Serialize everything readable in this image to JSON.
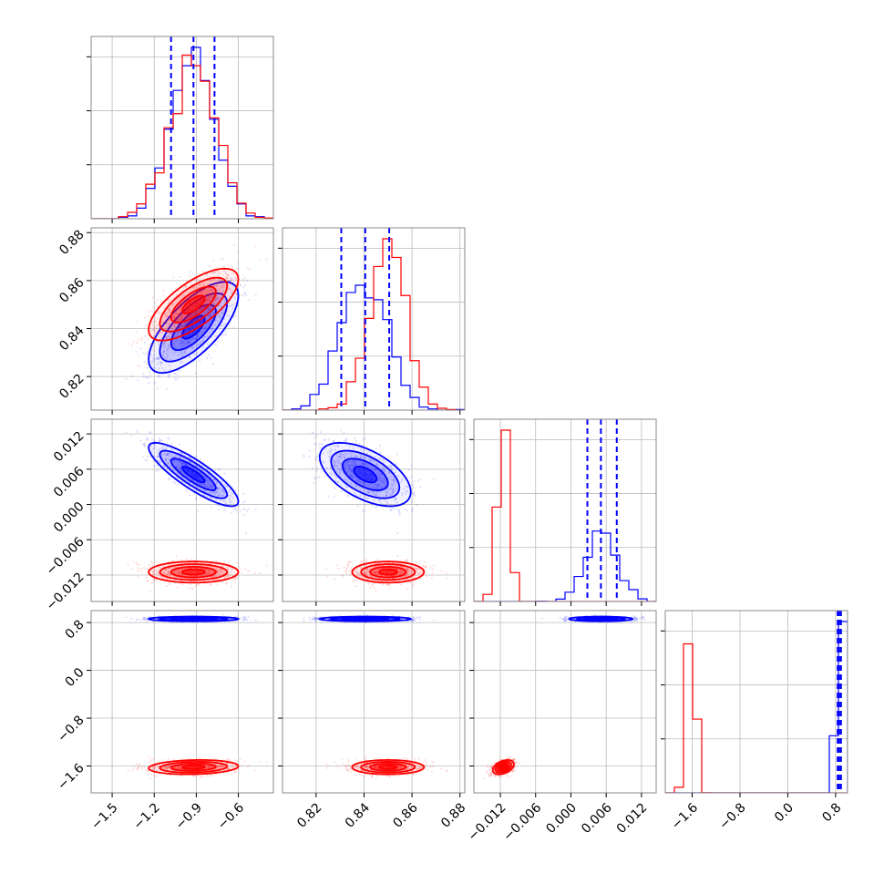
{
  "chart_data": {
    "type": "corner",
    "grid": true,
    "colors": {
      "series_a": "#0000ff",
      "series_b": "#ff0000",
      "frame": "#888888",
      "grid": "#bbbbbb"
    },
    "parameters": [
      {
        "key": "p0",
        "lim": [
          -1.65,
          -0.35
        ],
        "ticks": [
          -1.5,
          -1.2,
          -0.9,
          -0.6
        ],
        "tick_labels": [
          "−1.5",
          "−1.2",
          "−0.9",
          "−0.6"
        ]
      },
      {
        "key": "p1",
        "lim": [
          0.806,
          0.882
        ],
        "ticks": [
          0.82,
          0.84,
          0.86,
          0.88
        ],
        "tick_labels": [
          "0.82",
          "0.84",
          "0.86",
          "0.88"
        ]
      },
      {
        "key": "p2",
        "lim": [
          -0.0165,
          0.0145
        ],
        "ticks": [
          -0.012,
          -0.006,
          0.0,
          0.006,
          0.012
        ],
        "tick_labels": [
          "−0.012",
          "−0.006",
          "0.000",
          "0.006",
          "0.012"
        ]
      },
      {
        "key": "p3",
        "lim": [
          -2.05,
          1.0
        ],
        "ticks": [
          -1.6,
          -0.8,
          0.0,
          0.8
        ],
        "tick_labels": [
          "−1.6",
          "−0.8",
          "0.0",
          "0.8"
        ]
      }
    ],
    "quantiles": {
      "series": "series_a",
      "p0": [
        -1.08,
        -0.92,
        -0.77
      ],
      "p1": [
        0.8305,
        0.8405,
        0.8505
      ],
      "p2": [
        0.0028,
        0.0051,
        0.0078
      ],
      "p3": [
        0.835,
        0.86,
        0.89
      ]
    },
    "series": [
      {
        "id": "series_a",
        "mean": [
          -0.92,
          0.8405,
          0.0051,
          0.86
        ],
        "std": [
          0.16,
          0.0095,
          0.0027,
          0.02
        ],
        "corr": [
          [
            1,
            0.7,
            -0.85,
            0
          ],
          [
            0.7,
            1,
            -0.55,
            0
          ],
          [
            -0.85,
            -0.55,
            1,
            0
          ],
          [
            0,
            0,
            0,
            1
          ]
        ]
      },
      {
        "id": "series_b",
        "mean": [
          -0.92,
          0.85,
          -0.0115,
          -1.62
        ],
        "std": [
          0.16,
          0.0075,
          0.0009,
          0.06
        ],
        "corr": [
          [
            1,
            0.7,
            0,
            0.15
          ],
          [
            0.7,
            1,
            0,
            0
          ],
          [
            0,
            0,
            1,
            0.4
          ],
          [
            0.15,
            0,
            0.4,
            1
          ]
        ]
      }
    ]
  }
}
